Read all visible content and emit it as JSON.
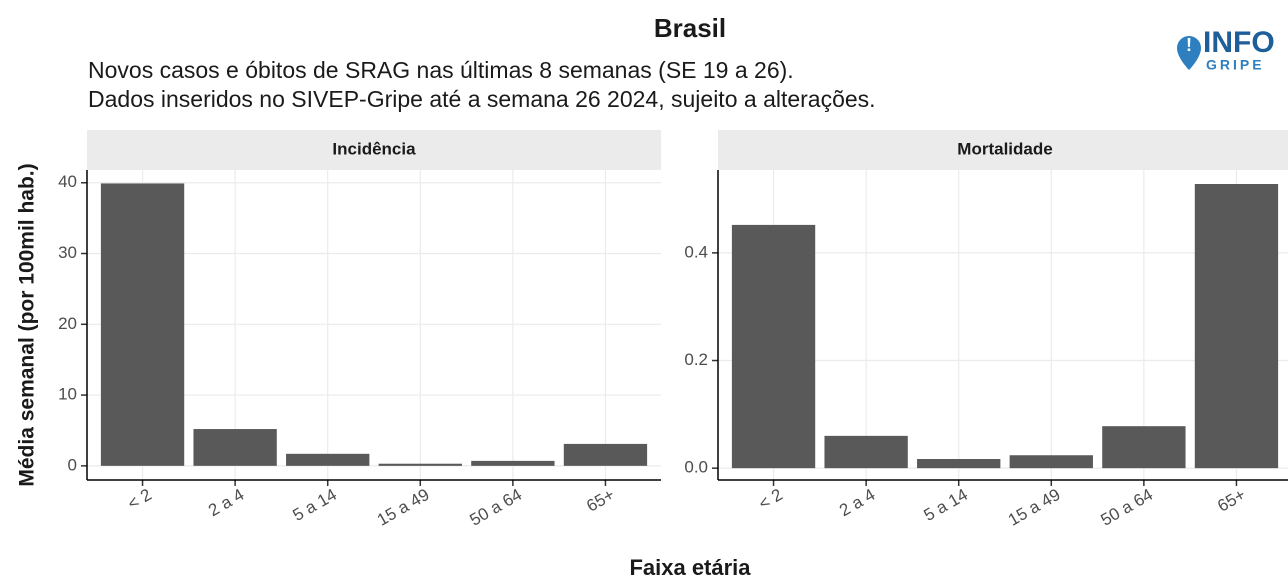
{
  "title": "Brasil",
  "subtitle": [
    "Novos casos e óbitos de SRAG nas últimas 8 semanas (SE 19 a 26).",
    "Dados inseridos no SIVEP-Gripe até a semana 26 2024, sujeito a alterações."
  ],
  "y_label": "Média semanal (por 100mil hab.)",
  "x_label": "Faixa etária",
  "logo": [
    "INFO",
    "GRIPE"
  ],
  "chart_data": [
    {
      "type": "bar",
      "title": "Incidência",
      "color": "#595959",
      "grid": true,
      "categories": [
        "< 2",
        "2 a 4",
        "5 a 14",
        "15 a 49",
        "50 a 64",
        "65+"
      ],
      "values": [
        39.9,
        5.2,
        1.7,
        0.3,
        0.7,
        3.1
      ],
      "ylim": [
        -2,
        41.8
      ],
      "yticks": [
        0,
        10,
        20,
        30,
        40
      ]
    },
    {
      "type": "bar",
      "title": "Mortalidade",
      "color": "#595959",
      "grid": true,
      "categories": [
        "< 2",
        "2 a 4",
        "5 a 14",
        "15 a 49",
        "50 a 64",
        "65+"
      ],
      "values": [
        0.452,
        0.06,
        0.017,
        0.024,
        0.078,
        0.528
      ],
      "ylim": [
        -0.022,
        0.554
      ],
      "yticks": [
        {
          "value": 0,
          "label": "0.0"
        },
        0.2,
        0.4
      ]
    }
  ]
}
